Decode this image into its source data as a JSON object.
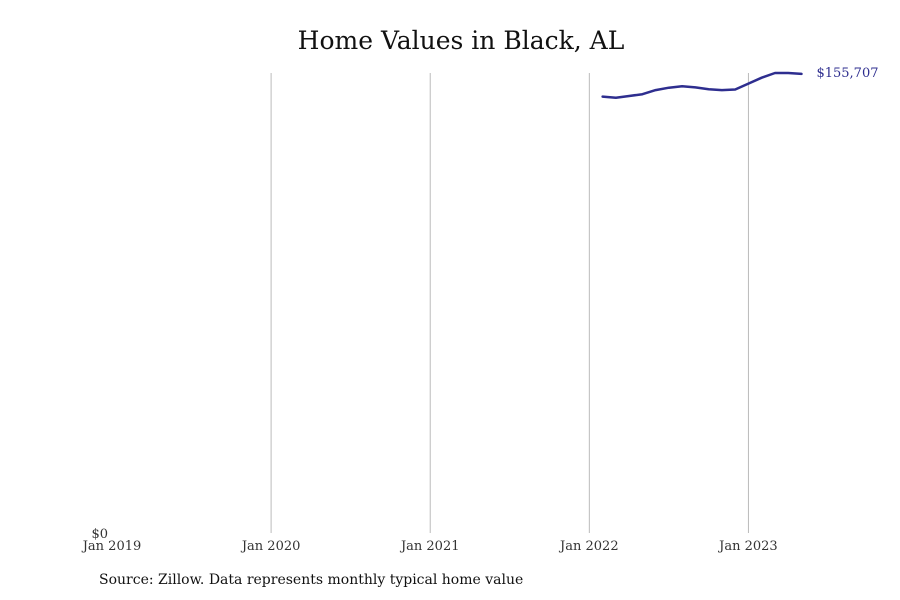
{
  "chart_data": {
    "type": "line",
    "title": "Home Values in Black, AL",
    "xlabel": "",
    "ylabel": "",
    "x_ticks": [
      "Jan 2019",
      "Jan 2020",
      "Jan 2021",
      "Jan 2022",
      "Jan 2023"
    ],
    "y_ticks": [
      "$0"
    ],
    "ylim": [
      0,
      156000
    ],
    "xlim": [
      "2019-01",
      "2023-07"
    ],
    "grid": "vertical",
    "end_label": "$155,707",
    "series": [
      {
        "color": "#2e2e8f",
        "points": [
          {
            "x": "2022-02",
            "y": 148000
          },
          {
            "x": "2022-03",
            "y": 147600
          },
          {
            "x": "2022-04",
            "y": 148200
          },
          {
            "x": "2022-05",
            "y": 148800
          },
          {
            "x": "2022-06",
            "y": 150200
          },
          {
            "x": "2022-07",
            "y": 151000
          },
          {
            "x": "2022-08",
            "y": 151500
          },
          {
            "x": "2022-09",
            "y": 151100
          },
          {
            "x": "2022-10",
            "y": 150500
          },
          {
            "x": "2022-11",
            "y": 150200
          },
          {
            "x": "2022-12",
            "y": 150400
          },
          {
            "x": "2023-01",
            "y": 152400
          },
          {
            "x": "2023-02",
            "y": 154400
          },
          {
            "x": "2023-03",
            "y": 156000
          },
          {
            "x": "2023-04",
            "y": 156000
          },
          {
            "x": "2023-05",
            "y": 155707
          }
        ]
      }
    ]
  },
  "source": "Source: Zillow. Data represents monthly typical home value"
}
